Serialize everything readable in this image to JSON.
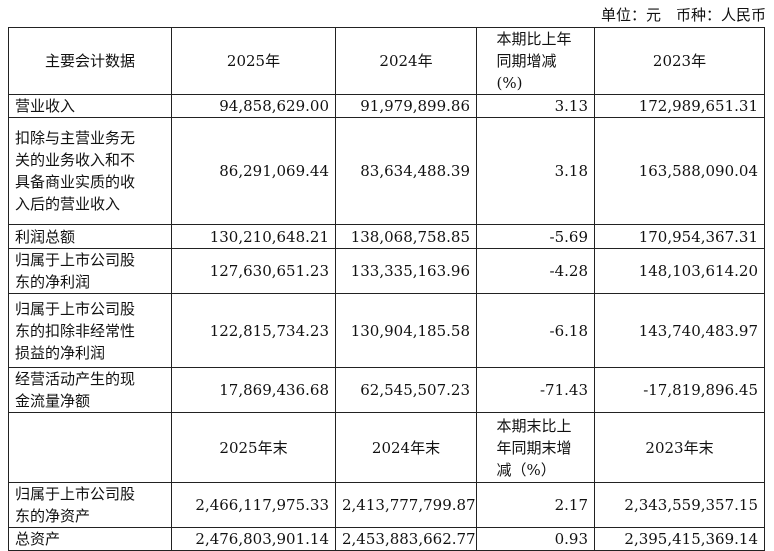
{
  "unit": "单位：元　币种：人民币",
  "table": {
    "header": [
      "主要会计数据",
      "2025年",
      "2024年",
      "本期比上年同期增减(%)",
      "2023年"
    ],
    "rows": [
      [
        "营业收入",
        "94,858,629.00",
        "91,979,899.86",
        "3.13",
        "172,989,651.31"
      ],
      [
        "扣除与主营业务无关的业务收入和不具备商业实质的收入后的营业收入",
        "86,291,069.44",
        "83,634,488.39",
        "3.18",
        "163,588,090.04"
      ],
      [
        "利润总额",
        "130,210,648.21",
        "138,068,758.85",
        "-5.69",
        "170,954,367.31"
      ],
      [
        "归属于上市公司股东的净利润",
        "127,630,651.23",
        "133,335,163.96",
        "-4.28",
        "148,103,614.20"
      ],
      [
        "归属于上市公司股东的扣除非经常性损益的净利润",
        "122,815,734.23",
        "130,904,185.58",
        "-6.18",
        "143,740,483.97"
      ],
      [
        "经营活动产生的现金流量净额",
        "17,869,436.68",
        "62,545,507.23",
        "-71.43",
        "-17,819,896.45"
      ]
    ],
    "subheader": [
      "2025年末",
      "2024年末",
      "本期末比上年同期末增减（%）",
      "2023年末"
    ],
    "rows2": [
      [
        "归属于上市公司股东的净资产",
        "2,466,117,975.33",
        "2,413,777,799.87",
        "2.17",
        "2,343,559,357.15"
      ],
      [
        "总资产",
        "2,476,803,901.14",
        "2,453,883,662.77",
        "0.93",
        "2,395,415,369.14"
      ]
    ]
  }
}
